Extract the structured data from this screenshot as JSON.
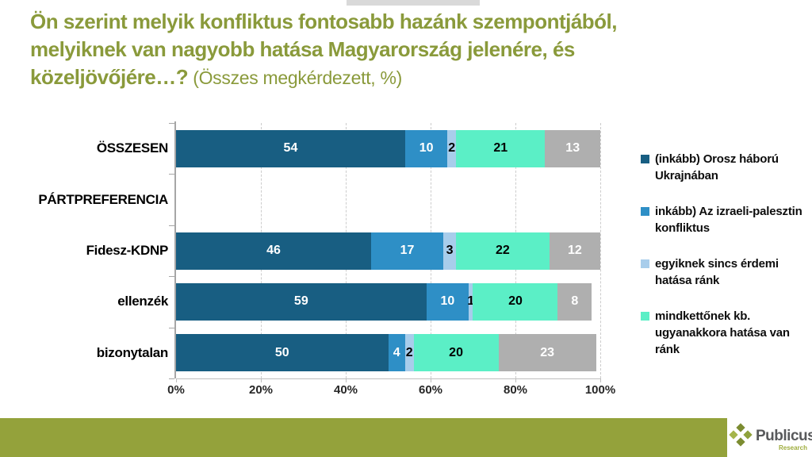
{
  "title": {
    "l1": "Ön szerint melyik konfliktus fontosabb hazánk szempontjából,",
    "l2": "melyiknek van nagyobb hatása Magyarország jelenére, és",
    "l3_bold": "közeljövőjére…?",
    "l3_suffix": " (Összes megkérdezett, %)"
  },
  "chart_data": {
    "type": "bar",
    "stacked": true,
    "orientation": "horizontal",
    "categories": [
      "ÖSSZESEN",
      "PÁRTPREFERENCIA",
      "Fidesz-KDNP",
      "ellenzék",
      "bizonytalan"
    ],
    "series": [
      {
        "name": "(inkább) Orosz háború Ukrajnában",
        "color": "#185e82",
        "label_color": "#ffffff",
        "values": [
          54,
          null,
          46,
          59,
          50
        ]
      },
      {
        "name": "inkább) Az izraeli-palesztin konfliktus",
        "color": "#2e8fc6",
        "label_color": "#ffffff",
        "values": [
          10,
          null,
          17,
          10,
          4
        ]
      },
      {
        "name": "egyiknek sincs érdemi hatása ránk",
        "color": "#a8cdeb",
        "label_color": "#000000",
        "values": [
          2,
          null,
          3,
          1,
          2
        ]
      },
      {
        "name": "mindkettőnek kb. ugyanakkora hatása van ránk",
        "color": "#5befc6",
        "label_color": "#000000",
        "values": [
          21,
          null,
          22,
          20,
          20
        ]
      },
      {
        "name": "",
        "color": "#afafaf",
        "label_color": "#ffffff",
        "values": [
          13,
          null,
          12,
          8,
          23
        ]
      }
    ],
    "x_axis": {
      "ticks": [
        "0%",
        "20%",
        "40%",
        "60%",
        "80%",
        "100%"
      ],
      "range": [
        0,
        100
      ],
      "gridlines": "dashed"
    },
    "legend_position": "right"
  },
  "legend": {
    "entries": [
      {
        "label": "(inkább) Orosz háború Ukrajnában",
        "color": "#185e82"
      },
      {
        "label": "inkább) Az izraeli-palesztin konfliktus",
        "color": "#2e8fc6"
      },
      {
        "label": "egyiknek sincs érdemi hatása ránk",
        "color": "#a8cdeb"
      },
      {
        "label": "mindkettőnek kb. ugyanakkora hatása van ránk",
        "color": "#5befc6"
      }
    ]
  },
  "footer": {
    "brand": "Publicus",
    "brand_sub": "Research",
    "band_color": "#94a23b"
  }
}
